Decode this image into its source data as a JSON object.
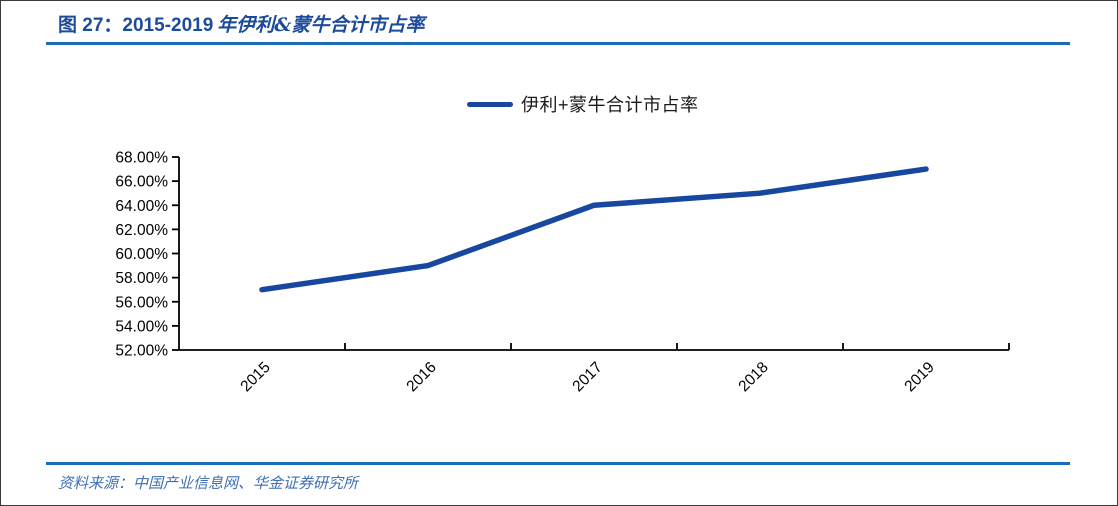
{
  "figure": {
    "number_label": "图 27：",
    "title_range": "2015-2019",
    "title_rest": "年伊利&蒙牛合计市占率"
  },
  "legend": {
    "label": "伊利+蒙牛合计市占率"
  },
  "source": {
    "label": "资料来源：",
    "text": "中国产业信息网、华金证券研究所"
  },
  "colors": {
    "title_blue": "#1D4B9B",
    "rule_blue": "#1C6DB8",
    "series_blue": "#17479E",
    "source_blue": "#3F6FB8",
    "axis_color": "#000000",
    "legend_text": "#1a1a1a"
  },
  "chart_data": {
    "type": "line",
    "categories": [
      "2015",
      "2016",
      "2017",
      "2018",
      "2019"
    ],
    "series": [
      {
        "name": "伊利+蒙牛合计市占率",
        "values": [
          57.0,
          59.0,
          64.0,
          65.0,
          67.0
        ]
      }
    ],
    "title": "2015-2019 年伊利&蒙牛合计市占率",
    "xlabel": "",
    "ylabel": "",
    "ylim": [
      52,
      68
    ],
    "ytick_step": 2,
    "ytick_labels": [
      "52.00%",
      "54.00%",
      "56.00%",
      "58.00%",
      "60.00%",
      "62.00%",
      "64.00%",
      "66.00%",
      "68.00%"
    ],
    "y_unit": "percent",
    "grid": false,
    "legend_position": "top-center"
  }
}
